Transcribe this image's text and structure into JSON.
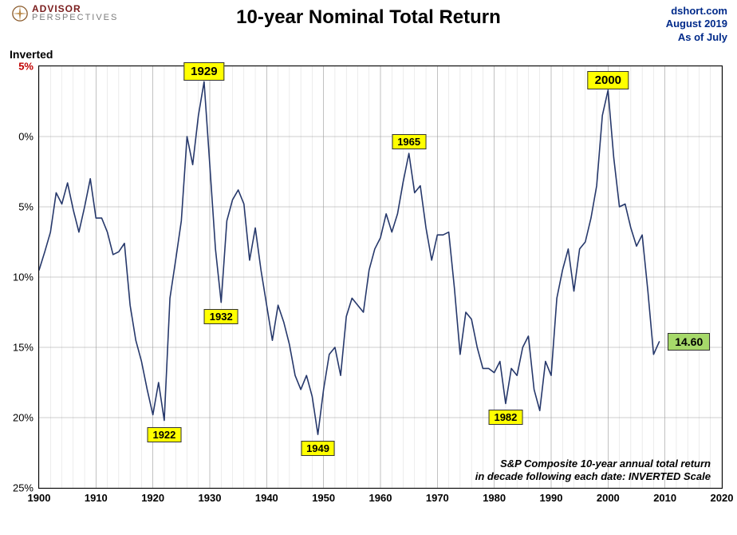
{
  "logo": {
    "line1": "ADVISOR",
    "line2": "PERSPECTIVES",
    "icon_color": "#8a5a2a",
    "cross_color": "#b88746"
  },
  "title": "10-year Nominal Total Return",
  "attribution": {
    "site": "dshort.com",
    "date": "August 2019",
    "asof": "As of July",
    "color": "#002a8a"
  },
  "ylabel": "Inverted",
  "chart": {
    "type": "line",
    "x": {
      "min": 1900,
      "max": 2020,
      "major_step": 10,
      "minor_step": 2
    },
    "y": {
      "min": -5,
      "max": 25,
      "step": 5,
      "inverted": true
    },
    "bg": "#ffffff",
    "grid_major": "#999999",
    "grid_minor": "#d0d0d0",
    "border_color": "#000000",
    "line_color": "#26386b",
    "line_width": 1.6,
    "tick_font_size": 13,
    "ytick_labels": [
      "5%",
      "0%",
      "5%",
      "10%",
      "15%",
      "20%",
      "25%"
    ],
    "ytick_values": [
      -5,
      0,
      5,
      10,
      15,
      20,
      25
    ],
    "ytick_red_index": 0,
    "xtick_values": [
      1900,
      1910,
      1920,
      1930,
      1940,
      1950,
      1960,
      1970,
      1980,
      1990,
      2000,
      2010,
      2020
    ],
    "data": [
      [
        1900,
        9.5
      ],
      [
        1901,
        8.2
      ],
      [
        1902,
        6.8
      ],
      [
        1903,
        4.0
      ],
      [
        1904,
        4.8
      ],
      [
        1905,
        3.3
      ],
      [
        1906,
        5.2
      ],
      [
        1907,
        6.8
      ],
      [
        1908,
        5.0
      ],
      [
        1909,
        3.0
      ],
      [
        1910,
        5.8
      ],
      [
        1911,
        5.8
      ],
      [
        1912,
        6.8
      ],
      [
        1913,
        8.4
      ],
      [
        1914,
        8.2
      ],
      [
        1915,
        7.6
      ],
      [
        1916,
        12.0
      ],
      [
        1917,
        14.5
      ],
      [
        1918,
        16.0
      ],
      [
        1919,
        18.0
      ],
      [
        1920,
        19.8
      ],
      [
        1921,
        17.5
      ],
      [
        1922,
        20.2
      ],
      [
        1923,
        11.5
      ],
      [
        1924,
        8.8
      ],
      [
        1925,
        6.0
      ],
      [
        1926,
        0.0
      ],
      [
        1927,
        2.0
      ],
      [
        1928,
        -1.5
      ],
      [
        1929,
        -3.9
      ],
      [
        1930,
        2.0
      ],
      [
        1931,
        8.0
      ],
      [
        1932,
        11.8
      ],
      [
        1933,
        6.0
      ],
      [
        1934,
        4.5
      ],
      [
        1935,
        3.8
      ],
      [
        1936,
        4.8
      ],
      [
        1937,
        8.8
      ],
      [
        1938,
        6.5
      ],
      [
        1939,
        9.5
      ],
      [
        1940,
        12.0
      ],
      [
        1941,
        14.5
      ],
      [
        1942,
        12.0
      ],
      [
        1943,
        13.2
      ],
      [
        1944,
        14.8
      ],
      [
        1945,
        17.0
      ],
      [
        1946,
        18.0
      ],
      [
        1947,
        17.0
      ],
      [
        1948,
        18.5
      ],
      [
        1949,
        21.2
      ],
      [
        1950,
        18.0
      ],
      [
        1951,
        15.5
      ],
      [
        1952,
        15.0
      ],
      [
        1953,
        17.0
      ],
      [
        1954,
        12.8
      ],
      [
        1955,
        11.5
      ],
      [
        1956,
        12.0
      ],
      [
        1957,
        12.5
      ],
      [
        1958,
        9.5
      ],
      [
        1959,
        8.0
      ],
      [
        1960,
        7.2
      ],
      [
        1961,
        5.5
      ],
      [
        1962,
        6.8
      ],
      [
        1963,
        5.5
      ],
      [
        1964,
        3.2
      ],
      [
        1965,
        1.2
      ],
      [
        1966,
        4.0
      ],
      [
        1967,
        3.5
      ],
      [
        1968,
        6.5
      ],
      [
        1969,
        8.8
      ],
      [
        1970,
        7.0
      ],
      [
        1971,
        7.0
      ],
      [
        1972,
        6.8
      ],
      [
        1973,
        10.8
      ],
      [
        1974,
        15.5
      ],
      [
        1975,
        12.5
      ],
      [
        1976,
        13.0
      ],
      [
        1977,
        15.0
      ],
      [
        1978,
        16.5
      ],
      [
        1979,
        16.5
      ],
      [
        1980,
        16.8
      ],
      [
        1981,
        16.0
      ],
      [
        1982,
        19.0
      ],
      [
        1983,
        16.5
      ],
      [
        1984,
        17.0
      ],
      [
        1985,
        15.0
      ],
      [
        1986,
        14.2
      ],
      [
        1987,
        18.0
      ],
      [
        1988,
        19.5
      ],
      [
        1989,
        16.0
      ],
      [
        1990,
        17.0
      ],
      [
        1991,
        11.5
      ],
      [
        1992,
        9.5
      ],
      [
        1993,
        8.0
      ],
      [
        1994,
        11.0
      ],
      [
        1995,
        8.0
      ],
      [
        1996,
        7.5
      ],
      [
        1997,
        5.8
      ],
      [
        1998,
        3.5
      ],
      [
        1999,
        -1.5
      ],
      [
        2000,
        -3.3
      ],
      [
        2001,
        1.5
      ],
      [
        2002,
        5.0
      ],
      [
        2003,
        4.8
      ],
      [
        2004,
        6.5
      ],
      [
        2005,
        7.8
      ],
      [
        2006,
        7.0
      ],
      [
        2007,
        11.0
      ],
      [
        2008,
        15.5
      ],
      [
        2009,
        14.6
      ]
    ],
    "annotations": [
      {
        "year": 1922,
        "value": 20.2,
        "label": "1922",
        "pos": "below",
        "big": false
      },
      {
        "year": 1929,
        "value": -3.9,
        "label": "1929",
        "pos": "above",
        "big": true
      },
      {
        "year": 1932,
        "value": 11.8,
        "label": "1932",
        "pos": "below",
        "big": false
      },
      {
        "year": 1949,
        "value": 21.2,
        "label": "1949",
        "pos": "below",
        "big": false
      },
      {
        "year": 1965,
        "value": 1.2,
        "label": "1965",
        "pos": "above",
        "big": false
      },
      {
        "year": 1982,
        "value": 19.0,
        "label": "1982",
        "pos": "below",
        "big": false
      },
      {
        "year": 2000,
        "value": -3.3,
        "label": "2000",
        "pos": "above",
        "big": true
      }
    ],
    "annotation_bg": "#ffff00",
    "badge": {
      "value": "14.60",
      "year": 2010.5,
      "y": 14.6,
      "bg": "#a6d96a"
    },
    "footnote_line1": "S&P Composite 10-year annual total return",
    "footnote_line2": "in decade following each date: INVERTED Scale"
  }
}
